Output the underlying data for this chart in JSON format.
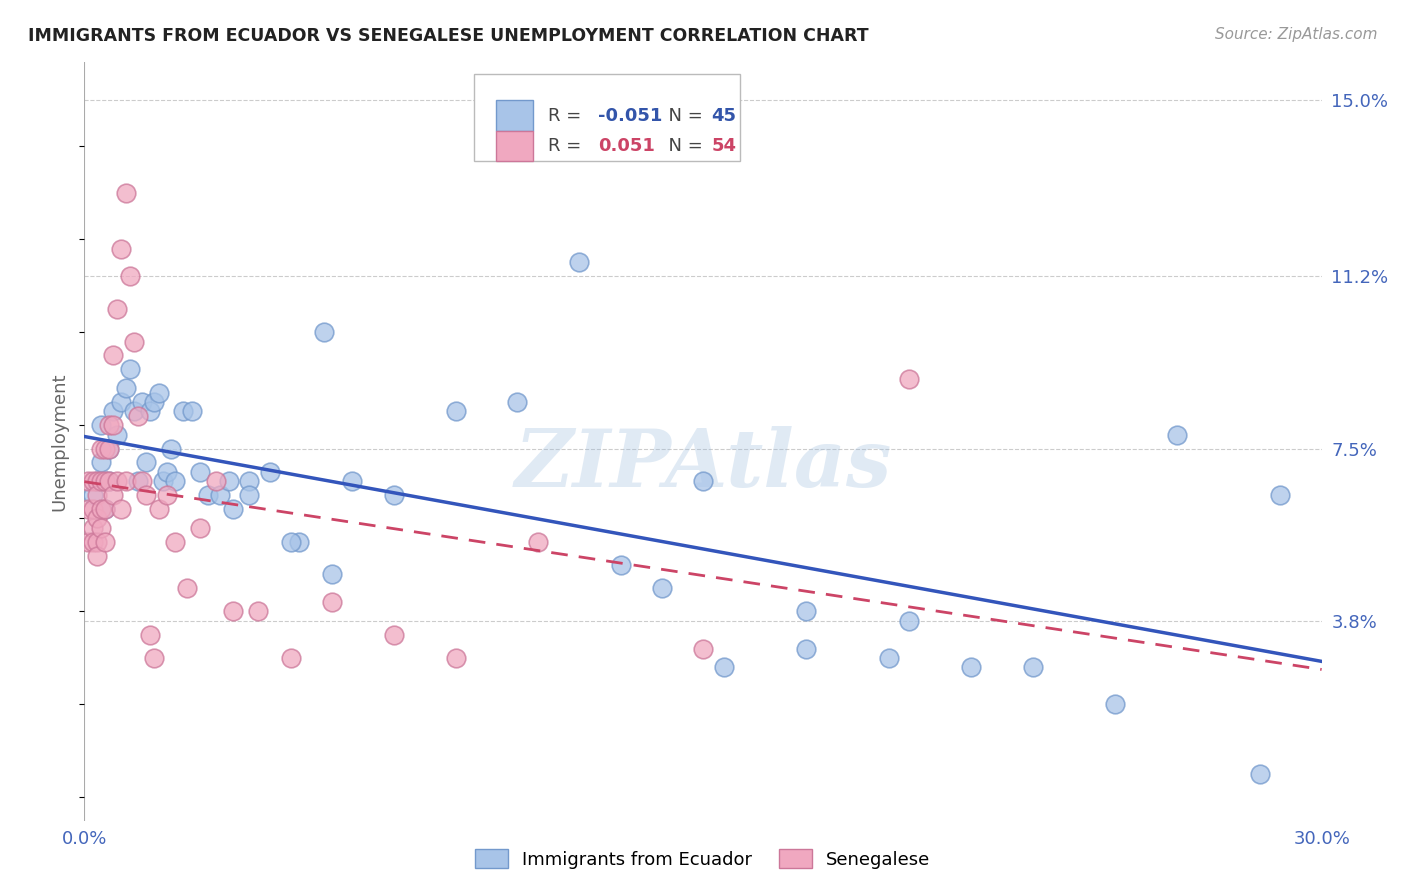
{
  "title": "IMMIGRANTS FROM ECUADOR VS SENEGALESE UNEMPLOYMENT CORRELATION CHART",
  "source": "Source: ZipAtlas.com",
  "ylabel": "Unemployment",
  "xlim": [
    0.0,
    0.3
  ],
  "ylim": [
    -0.005,
    0.158
  ],
  "xticks": [
    0.0,
    0.05,
    0.1,
    0.15,
    0.2,
    0.25,
    0.3
  ],
  "ytick_labels_right": [
    "3.8%",
    "7.5%",
    "11.2%",
    "15.0%"
  ],
  "ytick_values_right": [
    0.038,
    0.075,
    0.112,
    0.15
  ],
  "series1_label": "Immigrants from Ecuador",
  "series1_R": "-0.051",
  "series1_N": "45",
  "series1_color": "#a8c4e8",
  "series1_edge": "#7399cc",
  "series2_label": "Senegalese",
  "series2_R": "0.051",
  "series2_N": "54",
  "series2_color": "#f0a8c0",
  "series2_edge": "#cc7799",
  "trend1_color": "#3355bb",
  "trend2_color": "#cc4466",
  "trend2_linestyle": "dashed",
  "watermark": "ZIPAtlas",
  "watermark_color": "#99bbdd",
  "background_color": "#ffffff",
  "series1_x": [
    0.002,
    0.003,
    0.004,
    0.004,
    0.005,
    0.005,
    0.006,
    0.006,
    0.007,
    0.008,
    0.009,
    0.01,
    0.011,
    0.012,
    0.013,
    0.014,
    0.015,
    0.016,
    0.017,
    0.018,
    0.019,
    0.02,
    0.021,
    0.022,
    0.024,
    0.026,
    0.028,
    0.03,
    0.033,
    0.036,
    0.04,
    0.045,
    0.052,
    0.058,
    0.065,
    0.075,
    0.09,
    0.105,
    0.12,
    0.15,
    0.175,
    0.2,
    0.23,
    0.265,
    0.29
  ],
  "series1_y": [
    0.065,
    0.068,
    0.072,
    0.08,
    0.062,
    0.068,
    0.068,
    0.075,
    0.083,
    0.078,
    0.085,
    0.088,
    0.092,
    0.083,
    0.068,
    0.085,
    0.072,
    0.083,
    0.085,
    0.087,
    0.068,
    0.07,
    0.075,
    0.068,
    0.083,
    0.083,
    0.07,
    0.065,
    0.065,
    0.062,
    0.068,
    0.07,
    0.055,
    0.1,
    0.068,
    0.065,
    0.083,
    0.085,
    0.115,
    0.068,
    0.04,
    0.038,
    0.028,
    0.078,
    0.065
  ],
  "series1_y_low": [
    0.068,
    0.065,
    0.055,
    0.048,
    0.05,
    0.045,
    0.028,
    0.032,
    0.03,
    0.028,
    0.02,
    0.005
  ],
  "series1_x_low": [
    0.035,
    0.04,
    0.05,
    0.06,
    0.13,
    0.14,
    0.155,
    0.175,
    0.195,
    0.215,
    0.25,
    0.285
  ],
  "series2_x": [
    0.001,
    0.001,
    0.001,
    0.002,
    0.002,
    0.002,
    0.002,
    0.003,
    0.003,
    0.003,
    0.003,
    0.003,
    0.004,
    0.004,
    0.004,
    0.004,
    0.005,
    0.005,
    0.005,
    0.005,
    0.006,
    0.006,
    0.006,
    0.007,
    0.007,
    0.007,
    0.008,
    0.008,
    0.009,
    0.009,
    0.01,
    0.01,
    0.011,
    0.012,
    0.013,
    0.014,
    0.015,
    0.016,
    0.017,
    0.018,
    0.02,
    0.022,
    0.025,
    0.028,
    0.032,
    0.036,
    0.042,
    0.05,
    0.06,
    0.075,
    0.09,
    0.11,
    0.15,
    0.2
  ],
  "series2_y": [
    0.068,
    0.062,
    0.055,
    0.068,
    0.062,
    0.058,
    0.055,
    0.068,
    0.065,
    0.06,
    0.055,
    0.052,
    0.075,
    0.068,
    0.062,
    0.058,
    0.075,
    0.068,
    0.062,
    0.055,
    0.08,
    0.075,
    0.068,
    0.095,
    0.08,
    0.065,
    0.105,
    0.068,
    0.118,
    0.062,
    0.13,
    0.068,
    0.112,
    0.098,
    0.082,
    0.068,
    0.065,
    0.035,
    0.03,
    0.062,
    0.065,
    0.055,
    0.045,
    0.058,
    0.068,
    0.04,
    0.04,
    0.03,
    0.042,
    0.035,
    0.03,
    0.055,
    0.032,
    0.09
  ]
}
